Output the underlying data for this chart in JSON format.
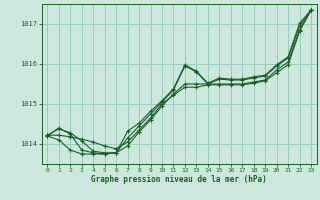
{
  "xlabel": "Graphe pression niveau de la mer (hPa)",
  "background_color": "#cce8dc",
  "grid_color": "#99ccbb",
  "line_color": "#1a5e2a",
  "xlim": [
    -0.5,
    23.5
  ],
  "ylim": [
    1013.5,
    1017.5
  ],
  "yticks": [
    1014,
    1015,
    1016,
    1017
  ],
  "xticks": [
    0,
    1,
    2,
    3,
    4,
    5,
    6,
    7,
    8,
    9,
    10,
    11,
    12,
    13,
    14,
    15,
    16,
    17,
    18,
    19,
    20,
    21,
    22,
    23
  ],
  "series": [
    [
      1014.2,
      1014.4,
      1014.25,
      1013.85,
      1013.78,
      1013.75,
      1013.78,
      1014.15,
      1014.45,
      1014.75,
      1015.05,
      1015.35,
      1015.95,
      1015.8,
      1015.5,
      1015.62,
      1015.6,
      1015.6,
      1015.65,
      1015.7,
      1015.95,
      1016.15,
      1016.95,
      1017.35
    ],
    [
      1014.2,
      1014.1,
      1013.85,
      1013.75,
      1013.75,
      1013.75,
      1013.78,
      1013.95,
      1014.3,
      1014.6,
      1014.95,
      1015.25,
      1015.5,
      1015.5,
      1015.5,
      1015.5,
      1015.5,
      1015.5,
      1015.55,
      1015.6,
      1015.85,
      1016.05,
      1016.85,
      1017.35
    ],
    [
      1014.22,
      1014.22,
      1014.18,
      1014.12,
      1014.05,
      1013.95,
      1013.88,
      1014.05,
      1014.35,
      1014.65,
      1015.0,
      1015.22,
      1015.42,
      1015.42,
      1015.48,
      1015.48,
      1015.48,
      1015.48,
      1015.52,
      1015.58,
      1015.78,
      1015.98,
      1016.82,
      1017.35
    ],
    [
      1014.22,
      1014.38,
      1014.28,
      1014.08,
      1013.82,
      1013.78,
      1013.78,
      1014.32,
      1014.52,
      1014.82,
      1015.08,
      1015.38,
      1015.98,
      1015.82,
      1015.52,
      1015.65,
      1015.62,
      1015.62,
      1015.68,
      1015.72,
      1015.98,
      1016.18,
      1017.02,
      1017.35
    ]
  ]
}
